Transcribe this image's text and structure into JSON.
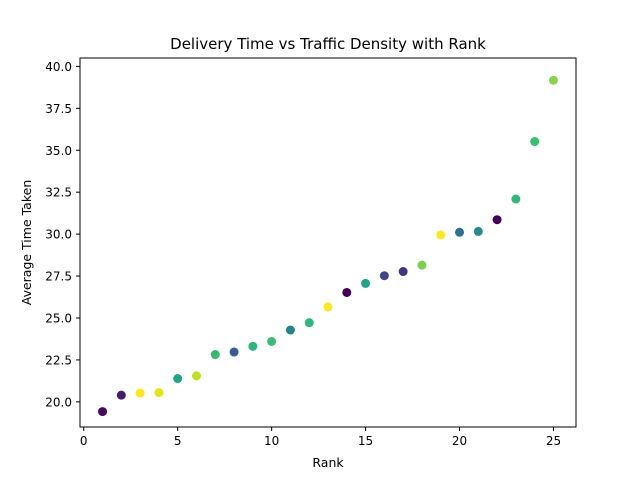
{
  "chart_data": {
    "type": "scatter",
    "title": "Delivery Time vs Traffic Density with Rank",
    "xlabel": "Rank",
    "ylabel": "Average Time Taken",
    "xlim": [
      -0.2,
      26.2
    ],
    "ylim": [
      18.5,
      40.5
    ],
    "xticks": [
      0,
      5,
      10,
      15,
      20,
      25
    ],
    "xtick_labels": [
      "0",
      "5",
      "10",
      "15",
      "20",
      "25"
    ],
    "yticks": [
      20.0,
      22.5,
      25.0,
      27.5,
      30.0,
      32.5,
      35.0,
      37.5,
      40.0
    ],
    "ytick_labels": [
      "20.0",
      "22.5",
      "25.0",
      "27.5",
      "30.0",
      "32.5",
      "35.0",
      "37.5",
      "40.0"
    ],
    "grid": false,
    "colormap": "viridis",
    "points": [
      {
        "x": 1,
        "y": 19.42,
        "color": "#46095f"
      },
      {
        "x": 2,
        "y": 20.4,
        "color": "#471c6a"
      },
      {
        "x": 3,
        "y": 20.52,
        "color": "#fde725"
      },
      {
        "x": 4,
        "y": 20.55,
        "color": "#e3e41a"
      },
      {
        "x": 5,
        "y": 21.39,
        "color": "#21a685"
      },
      {
        "x": 6,
        "y": 21.55,
        "color": "#bddf26"
      },
      {
        "x": 7,
        "y": 22.82,
        "color": "#3ab76e"
      },
      {
        "x": 8,
        "y": 22.97,
        "color": "#365c8d"
      },
      {
        "x": 9,
        "y": 23.31,
        "color": "#2fb47c"
      },
      {
        "x": 10,
        "y": 23.6,
        "color": "#3dbc74"
      },
      {
        "x": 11,
        "y": 24.28,
        "color": "#27808e"
      },
      {
        "x": 12,
        "y": 24.72,
        "color": "#31b57b"
      },
      {
        "x": 13,
        "y": 25.66,
        "color": "#fde725"
      },
      {
        "x": 14,
        "y": 26.52,
        "color": "#440154"
      },
      {
        "x": 15,
        "y": 27.06,
        "color": "#21a386"
      },
      {
        "x": 16,
        "y": 27.52,
        "color": "#3f4788"
      },
      {
        "x": 17,
        "y": 27.77,
        "color": "#453581"
      },
      {
        "x": 18,
        "y": 28.15,
        "color": "#7ad151"
      },
      {
        "x": 19,
        "y": 29.95,
        "color": "#fde725"
      },
      {
        "x": 20,
        "y": 30.11,
        "color": "#2c718e"
      },
      {
        "x": 21,
        "y": 30.16,
        "color": "#23898e"
      },
      {
        "x": 22,
        "y": 30.86,
        "color": "#440154"
      },
      {
        "x": 23,
        "y": 32.09,
        "color": "#35b779"
      },
      {
        "x": 24,
        "y": 35.52,
        "color": "#3dbc74"
      },
      {
        "x": 25,
        "y": 39.17,
        "color": "#86d549"
      }
    ]
  }
}
